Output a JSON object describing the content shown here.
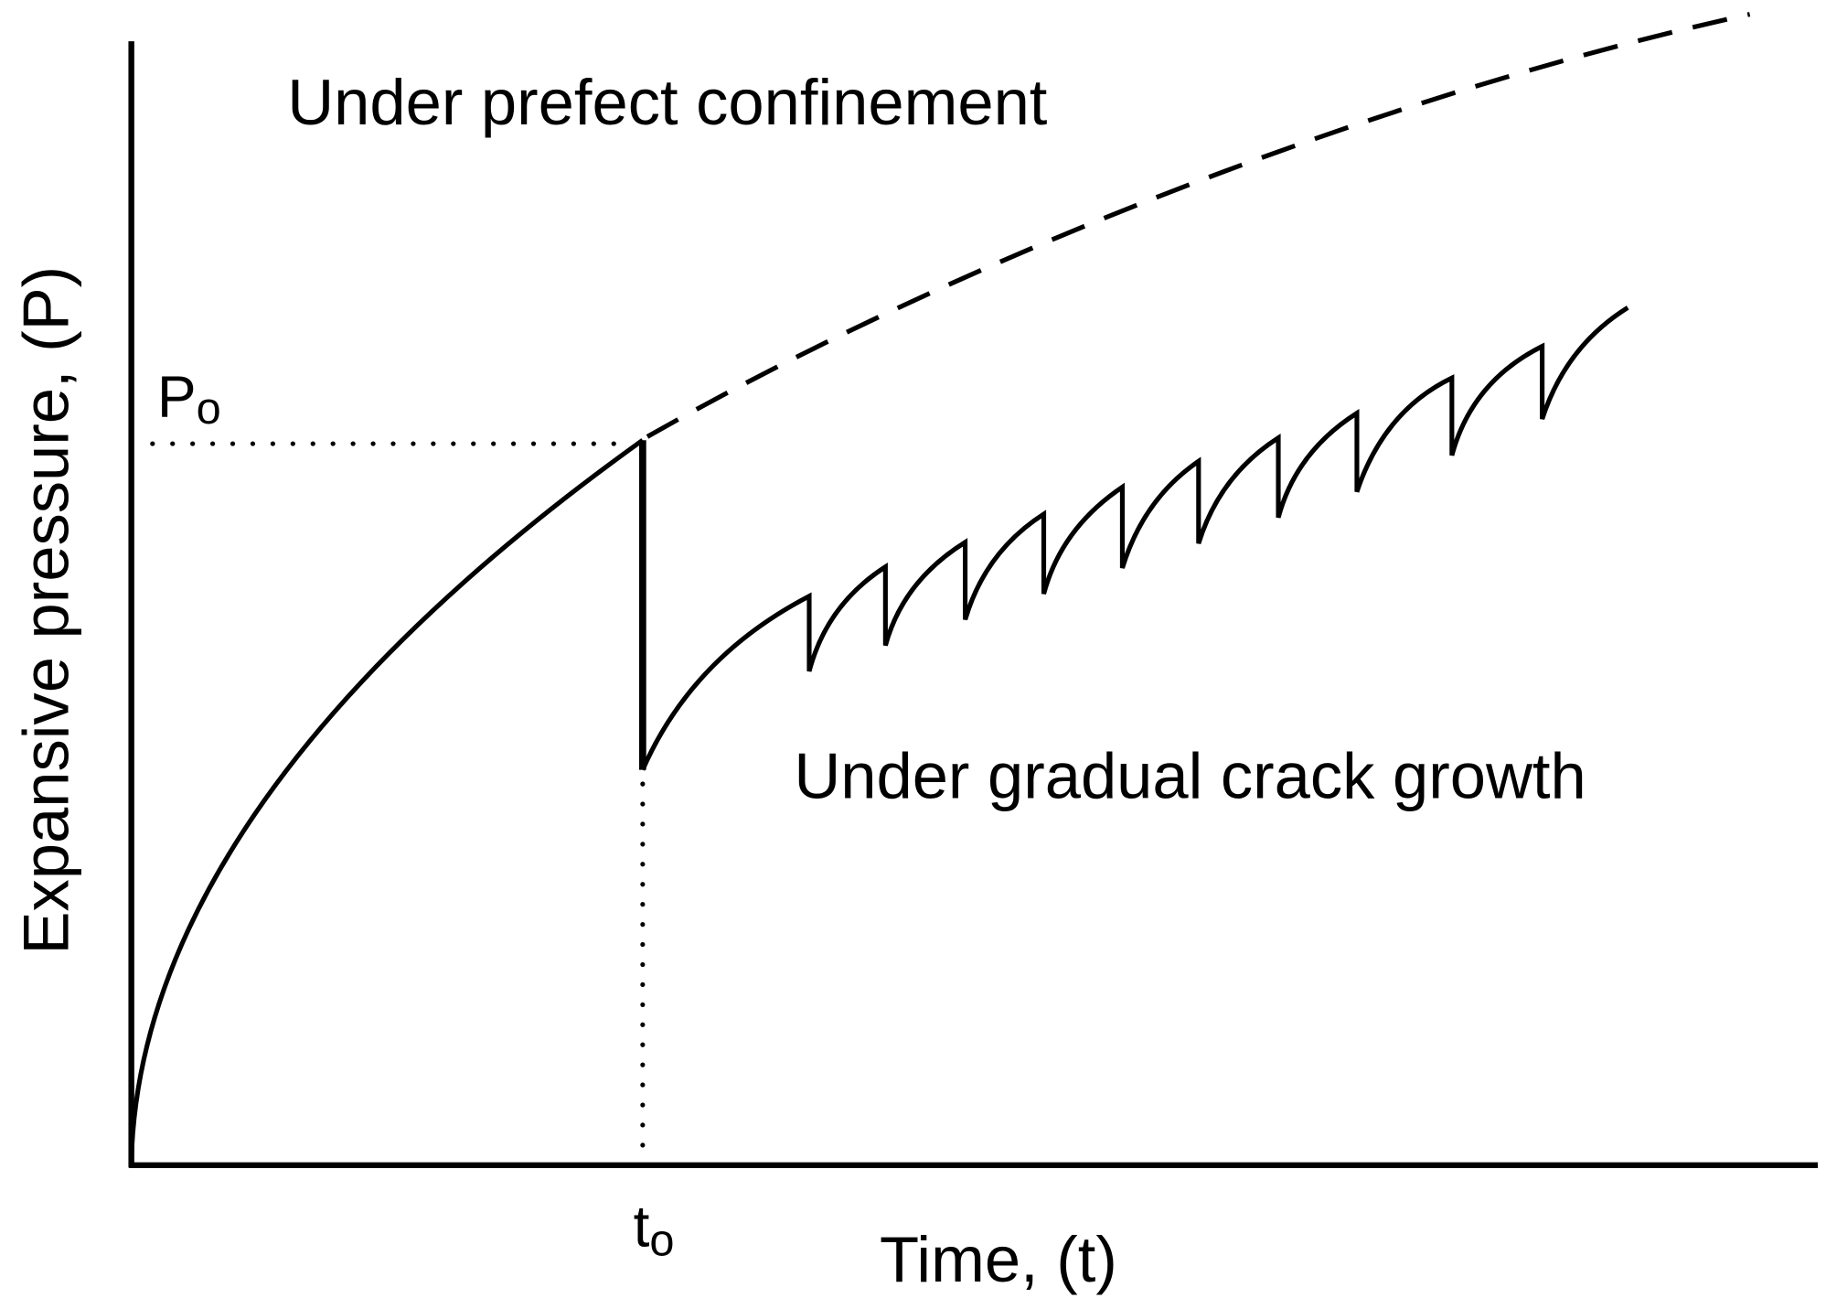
{
  "title_top": "Under prefect confinement",
  "title_bottom": "Under gradual crack growth",
  "y_axis_label": "Expansive pressure, (P)",
  "x_axis_label": "Time, (t)",
  "p_marker": {
    "label": "P",
    "subscript": "o"
  },
  "t_marker": {
    "label": "t",
    "subscript": "o"
  }
}
